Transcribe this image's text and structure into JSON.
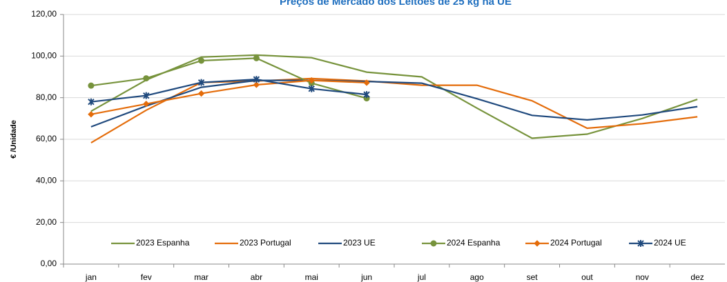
{
  "chart_data": {
    "type": "line",
    "title": "Preços de Mercado dos Leitões de 25 kg na UE",
    "y_label": "€ /Unidade",
    "categories": [
      "jan",
      "fev",
      "mar",
      "abr",
      "mai",
      "jun",
      "jul",
      "ago",
      "set",
      "out",
      "nov",
      "dez"
    ],
    "ylim": [
      0,
      120
    ],
    "yticks": [
      {
        "value": 0,
        "label": "0,00"
      },
      {
        "value": 20,
        "label": "20,00"
      },
      {
        "value": 40,
        "label": "40,00"
      },
      {
        "value": 60,
        "label": "60,00"
      },
      {
        "value": 80,
        "label": "80,00"
      },
      {
        "value": 100,
        "label": "100,00"
      },
      {
        "value": 120,
        "label": "120,00"
      }
    ],
    "grid": true,
    "legend": "lower center",
    "series": [
      {
        "name": "2023 Espanha",
        "color": "#77933c",
        "marker": "none",
        "values": [
          73.5,
          88.5,
          99.5,
          100.5,
          99.2,
          92.3,
          90,
          75,
          60.5,
          62.5,
          70,
          79.2
        ]
      },
      {
        "name": "2023 Portugal",
        "color": "#e46c0a",
        "marker": "none",
        "values": [
          58.3,
          74,
          87.3,
          88,
          89.2,
          88,
          86,
          86,
          78.5,
          65.3,
          67.5,
          70.8
        ]
      },
      {
        "name": "2023 UE",
        "color": "#1f497d",
        "marker": "none",
        "values": [
          66,
          76,
          85,
          88.3,
          88.3,
          87.8,
          87,
          79.5,
          71.5,
          69.3,
          71.7,
          75.7
        ]
      },
      {
        "name": "2024 Espanha",
        "color": "#77933c",
        "marker": "circle",
        "values": [
          85.8,
          89.3,
          97.8,
          99,
          87,
          79.7,
          null,
          null,
          null,
          null,
          null,
          null
        ]
      },
      {
        "name": "2024 Portugal",
        "color": "#e46c0a",
        "marker": "diamond",
        "values": [
          72,
          77,
          82,
          86.2,
          88.3,
          87.2,
          null,
          null,
          null,
          null,
          null,
          null
        ]
      },
      {
        "name": "2024 UE",
        "color": "#1f497d",
        "marker": "star",
        "values": [
          78,
          81,
          87.3,
          88.8,
          84.3,
          81.5,
          null,
          null,
          null,
          null,
          null,
          null
        ]
      }
    ]
  }
}
